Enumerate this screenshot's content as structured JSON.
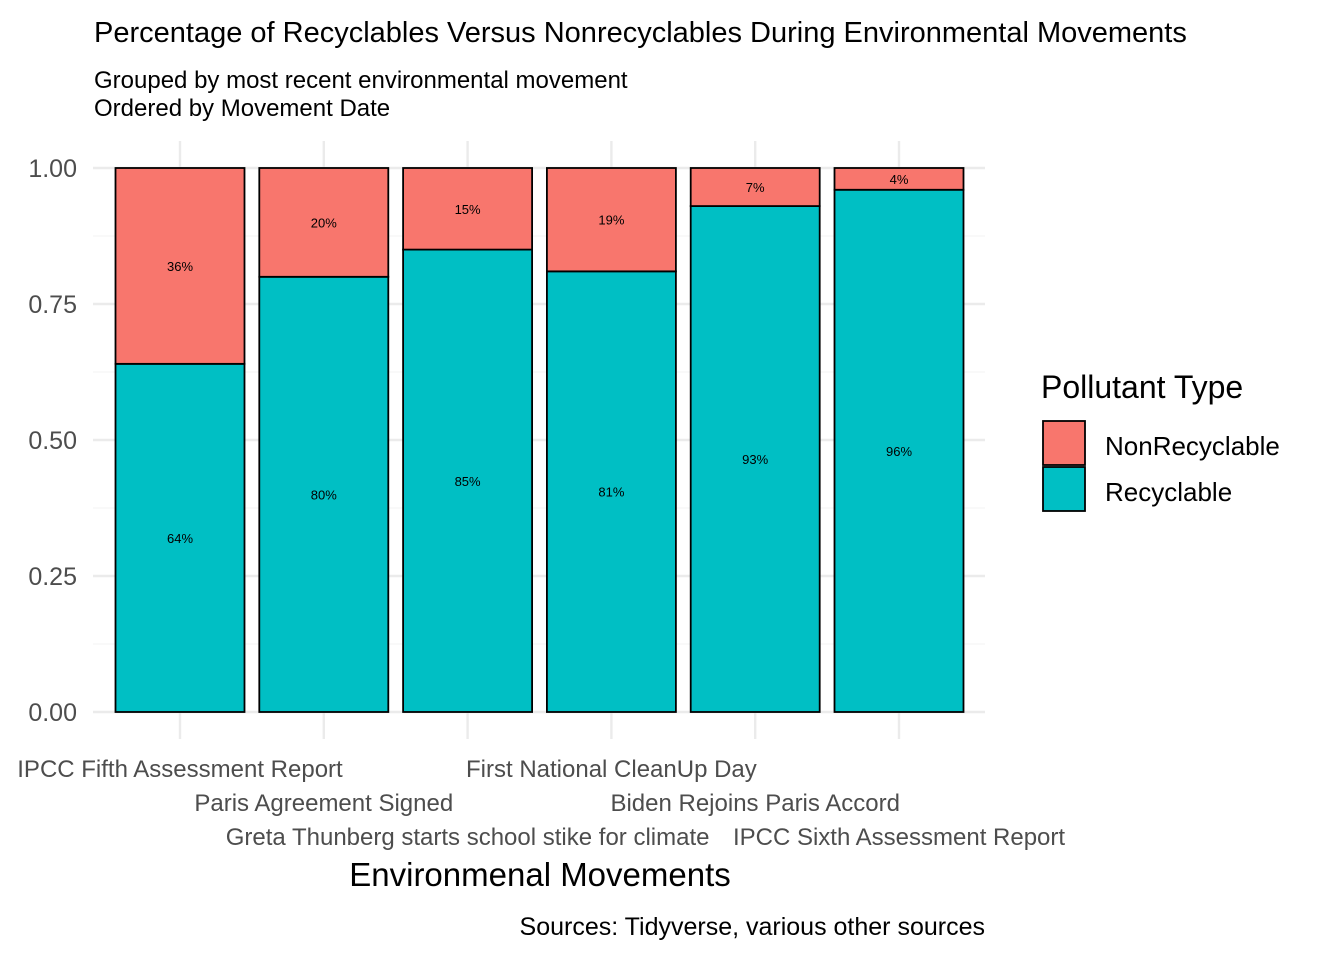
{
  "chart_data": {
    "type": "bar",
    "stacked": true,
    "title": "Percentage of Recyclables Versus Nonrecyclables During Environmental Movements",
    "subtitle_lines": [
      "Grouped by most recent environmental movement",
      "Ordered by Movement Date"
    ],
    "xlabel": "Environmenal Movements",
    "ylabel": "",
    "caption": "Sources: Tidyverse, various other sources",
    "ylim": [
      0,
      1
    ],
    "y_ticks": [
      "0.00",
      "0.25",
      "0.50",
      "0.75",
      "1.00"
    ],
    "categories": [
      "IPCC Fifth Assessment Report",
      "Paris Agreement Signed",
      "Greta Thunberg starts school stike for climate",
      "First National CleanUp Day",
      "Biden Rejoins Paris Accord",
      "IPCC Sixth Assessment Report"
    ],
    "legend": {
      "title": "Pollutant Type",
      "position": "right",
      "entries": [
        {
          "name": "NonRecyclable",
          "color": "#F8766D"
        },
        {
          "name": "Recyclable",
          "color": "#00BFC4"
        }
      ]
    },
    "series": [
      {
        "name": "Recyclable",
        "color": "#00BFC4",
        "values": [
          0.64,
          0.8,
          0.85,
          0.81,
          0.93,
          0.96
        ],
        "labels": [
          "64%",
          "80%",
          "85%",
          "81%",
          "93%",
          "96%"
        ]
      },
      {
        "name": "NonRecyclable",
        "color": "#F8766D",
        "values": [
          0.36,
          0.2,
          0.15,
          0.19,
          0.07,
          0.04
        ],
        "labels": [
          "36%",
          "20%",
          "15%",
          "19%",
          "7%",
          "4%"
        ]
      }
    ]
  }
}
